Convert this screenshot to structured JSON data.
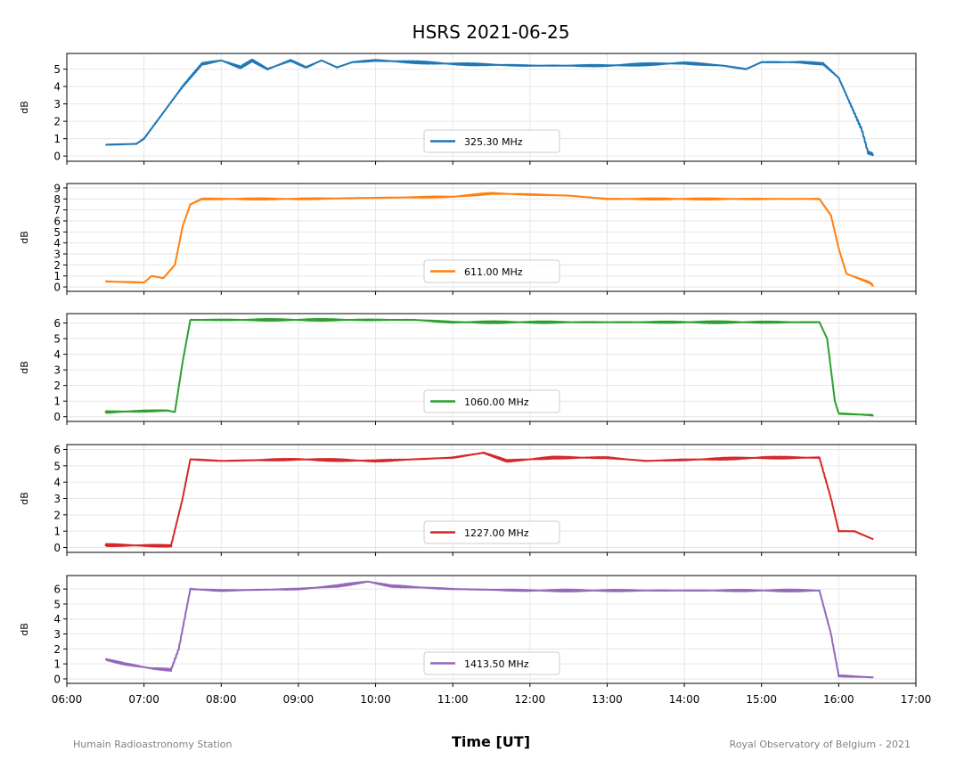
{
  "chart_data": {
    "type": "line",
    "title": "HSRS 2021-06-25",
    "xlabel": "Time [UT]",
    "xlim": [
      6,
      17
    ],
    "xticks": [
      "06:00",
      "07:00",
      "08:00",
      "09:00",
      "10:00",
      "11:00",
      "12:00",
      "13:00",
      "14:00",
      "15:00",
      "16:00",
      "17:00"
    ],
    "grid": true,
    "legend_placement": "lower center",
    "footer_left": "Humain Radioastronomy Station",
    "footer_right": "Royal Observatory of Belgium - 2021",
    "subplots": [
      {
        "name": "325.30 MHz",
        "ylabel": "dB",
        "color": "#1f77b4",
        "ylim": [
          -0.3,
          5.9
        ],
        "yticks": [
          0,
          1,
          2,
          3,
          4,
          5
        ],
        "x": [
          6.5,
          6.9,
          7.0,
          7.25,
          7.5,
          7.75,
          8.0,
          8.25,
          8.4,
          8.6,
          8.9,
          9.1,
          9.3,
          9.5,
          9.7,
          10.0,
          11.0,
          12.0,
          13.0,
          14.0,
          14.5,
          14.8,
          15.0,
          15.5,
          15.8,
          16.0,
          16.2,
          16.3,
          16.38,
          16.45
        ],
        "y": [
          0.65,
          0.7,
          1.0,
          2.5,
          4.0,
          5.3,
          5.5,
          5.1,
          5.5,
          5.0,
          5.5,
          5.1,
          5.5,
          5.1,
          5.4,
          5.5,
          5.3,
          5.2,
          5.2,
          5.35,
          5.2,
          5.0,
          5.4,
          5.4,
          5.3,
          4.5,
          2.5,
          1.5,
          0.2,
          0.1
        ]
      },
      {
        "name": "611.00 MHz",
        "ylabel": "dB",
        "color": "#ff7f0e",
        "ylim": [
          -0.4,
          9.4
        ],
        "yticks": [
          0,
          1,
          2,
          3,
          4,
          5,
          6,
          7,
          8,
          9
        ],
        "x": [
          6.5,
          7.0,
          7.1,
          7.25,
          7.4,
          7.5,
          7.6,
          7.75,
          9.0,
          10.0,
          11.0,
          11.5,
          12.5,
          13.0,
          15.75,
          15.9,
          16.0,
          16.1,
          16.25,
          16.4,
          16.45
        ],
        "y": [
          0.5,
          0.4,
          1.0,
          0.8,
          2.0,
          5.5,
          7.5,
          8.0,
          8.0,
          8.1,
          8.2,
          8.5,
          8.3,
          8.0,
          8.0,
          6.5,
          3.5,
          1.2,
          0.8,
          0.4,
          0.1
        ]
      },
      {
        "name": "1060.00 MHz",
        "ylabel": "dB",
        "color": "#2ca02c",
        "ylim": [
          -0.3,
          6.6
        ],
        "yticks": [
          0,
          1,
          2,
          3,
          4,
          5,
          6
        ],
        "x": [
          6.5,
          7.3,
          7.4,
          7.5,
          7.6,
          9.0,
          10.5,
          11.0,
          13.0,
          15.75,
          15.85,
          15.95,
          16.0,
          16.45
        ],
        "y": [
          0.3,
          0.4,
          0.3,
          3.5,
          6.2,
          6.2,
          6.2,
          6.05,
          6.05,
          6.05,
          5.0,
          1.0,
          0.2,
          0.1
        ]
      },
      {
        "name": "1227.00 MHz",
        "ylabel": "dB",
        "color": "#d62728",
        "ylim": [
          -0.3,
          6.3
        ],
        "yticks": [
          0,
          1,
          2,
          3,
          4,
          5,
          6
        ],
        "x": [
          6.5,
          7.35,
          7.5,
          7.6,
          8.0,
          9.0,
          10.0,
          11.0,
          11.4,
          11.7,
          12.3,
          13.0,
          13.5,
          15.0,
          15.75,
          15.9,
          16.0,
          16.2,
          16.45
        ],
        "y": [
          0.15,
          0.1,
          3.0,
          5.4,
          5.3,
          5.4,
          5.3,
          5.5,
          5.8,
          5.3,
          5.5,
          5.5,
          5.3,
          5.5,
          5.5,
          3.0,
          1.0,
          1.0,
          0.5
        ]
      },
      {
        "name": "1413.50 MHz",
        "ylabel": "dB",
        "color": "#9467bd",
        "ylim": [
          -0.3,
          6.9
        ],
        "yticks": [
          0,
          1,
          2,
          3,
          4,
          5,
          6
        ],
        "x": [
          6.5,
          6.75,
          7.1,
          7.35,
          7.45,
          7.6,
          8.0,
          9.0,
          9.5,
          9.9,
          10.2,
          11.0,
          12.0,
          15.75,
          15.9,
          16.0,
          16.45
        ],
        "y": [
          1.3,
          1.0,
          0.7,
          0.6,
          2.0,
          6.0,
          5.9,
          6.0,
          6.2,
          6.5,
          6.2,
          6.0,
          5.9,
          5.9,
          3.0,
          0.2,
          0.1
        ]
      }
    ]
  }
}
